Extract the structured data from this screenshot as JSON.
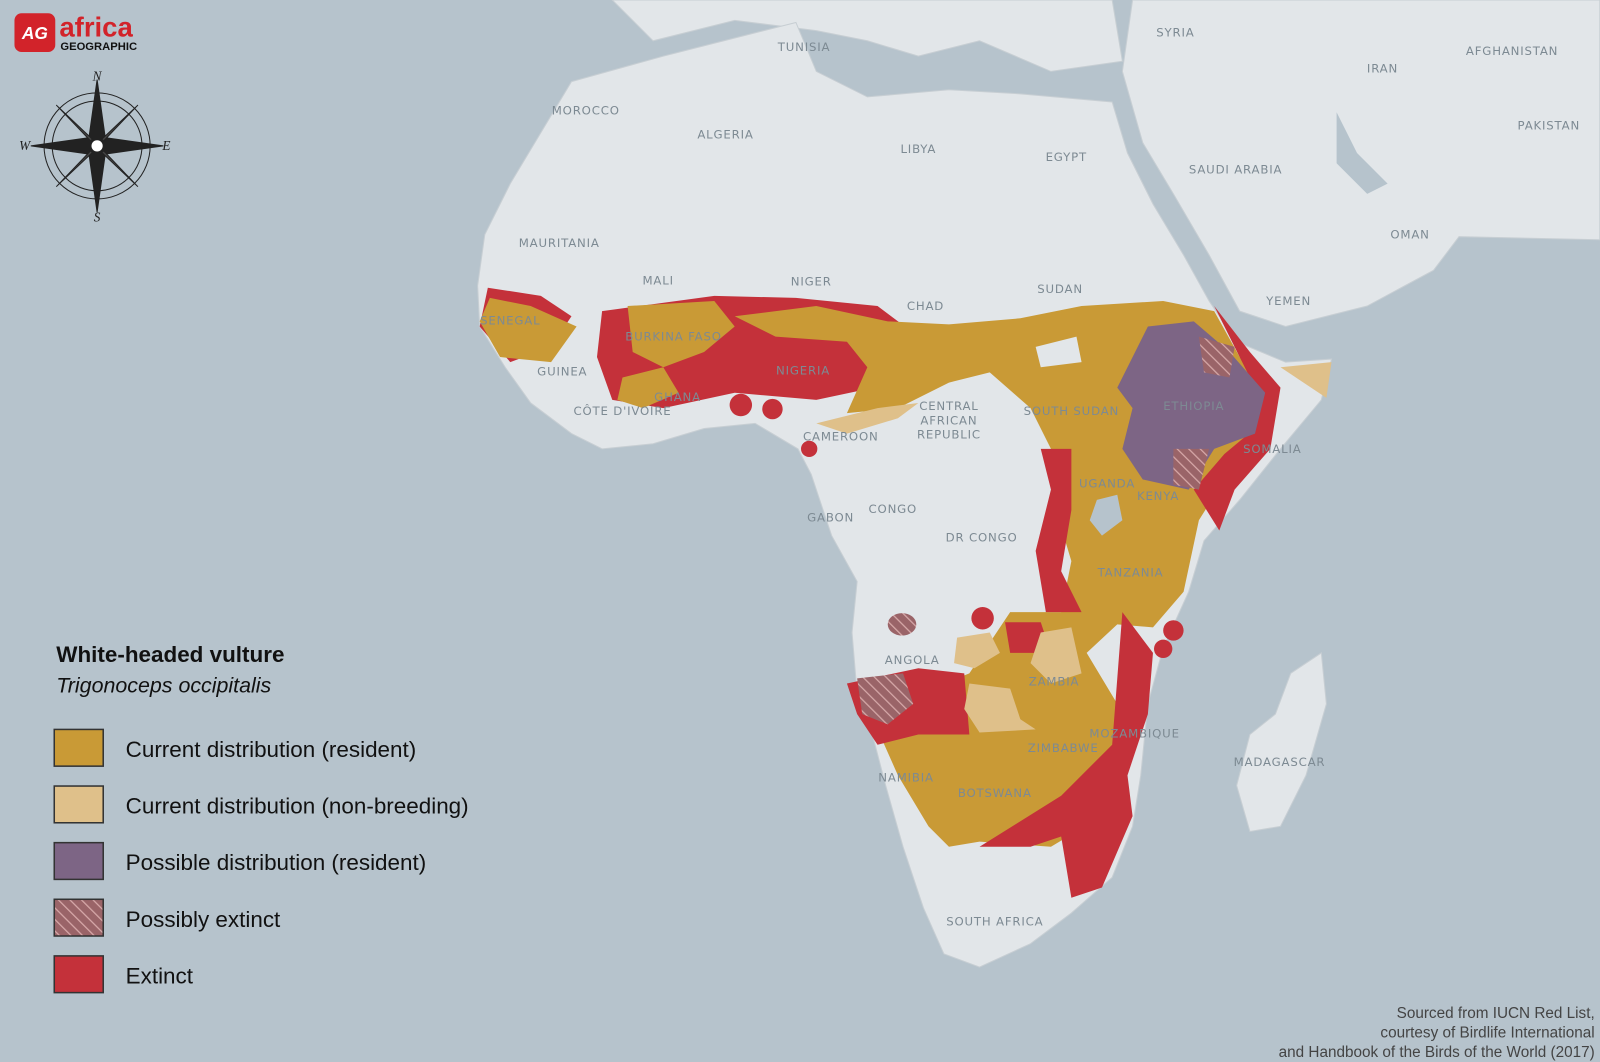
{
  "logo": {
    "badge": "AG",
    "name": "africa",
    "sub": "GEOGRAPHIC"
  },
  "compass": {
    "north": "N",
    "south": "S",
    "east": "E",
    "west": "W"
  },
  "countries": [
    "TUNISIA",
    "SYRIA",
    "AFGHANISTAN",
    "IRAN",
    "MOROCCO",
    "ALGERIA",
    "LIBYA",
    "EGYPT",
    "SAUDI ARABIA",
    "PAKISTAN",
    "OMAN",
    "MAURITANIA",
    "MALI",
    "NIGER",
    "CHAD",
    "SUDAN",
    "YEMEN",
    "SENEGAL",
    "BURKINA FASO",
    "GUINEA",
    "NIGERIA",
    "GHANA",
    "CÔTE D'IVOIRE",
    "SOUTH SUDAN",
    "ETHIOPIA",
    "CENTRAL",
    "AFRICAN",
    "REPUBLIC",
    "CAMEROON",
    "SOMALIA",
    "UGANDA",
    "KENYA",
    "GABON",
    "CONGO",
    "DR CONGO",
    "TANZANIA",
    "ANGOLA",
    "ZAMBIA",
    "MOZAMBIQUE",
    "MADAGASCAR",
    "ZIMBABWE",
    "NAMIBIA",
    "BOTSWANA",
    "SOUTH AFRICA"
  ],
  "legend": {
    "title": "White-headed vulture",
    "subtitle": "Trigonoceps occipitalis",
    "items": [
      {
        "label": "Current distribution (resident)",
        "color": "#c99a36"
      },
      {
        "label": "Current distribution (non-breeding)",
        "color": "#dfc08a"
      },
      {
        "label": "Possible distribution (resident)",
        "color": "#7d6585"
      },
      {
        "label": "Possibly extinct",
        "color": "#9a6468"
      },
      {
        "label": "Extinct",
        "color": "#c4313a"
      }
    ]
  },
  "source": [
    "Sourced from IUCN Red List,",
    "courtesy of Birdlife International",
    "and Handbook of the Birds of the World (2017)"
  ]
}
